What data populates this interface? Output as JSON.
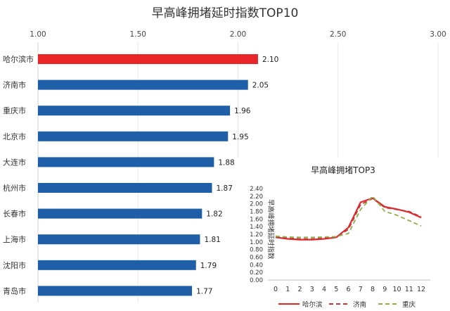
{
  "chart_data": [
    {
      "type": "bar",
      "orientation": "horizontal",
      "title": "早高峰拥堵延时指数TOP10",
      "xlim": [
        1.0,
        3.0
      ],
      "xticks": [
        "1.00",
        "1.50",
        "2.00",
        "2.50",
        "3.00"
      ],
      "xtick_values": [
        1.0,
        1.5,
        2.0,
        2.5,
        3.0
      ],
      "categories": [
        "哈尔滨市",
        "济南市",
        "重庆市",
        "北京市",
        "大连市",
        "杭州市",
        "长春市",
        "上海市",
        "沈阳市",
        "青岛市"
      ],
      "values": [
        2.1,
        2.05,
        1.96,
        1.95,
        1.88,
        1.87,
        1.82,
        1.81,
        1.79,
        1.77
      ],
      "value_labels": [
        "2.10",
        "2.05",
        "1.96",
        "1.95",
        "1.88",
        "1.87",
        "1.82",
        "1.81",
        "1.79",
        "1.77"
      ],
      "highlight_index": 0,
      "bar_color": "#1f5fa8",
      "highlight_color": "#e8262a"
    },
    {
      "type": "line",
      "title": "早高峰拥堵TOP3",
      "ylabel": "早高峰拥堵延时指数",
      "x": [
        0,
        1,
        2,
        3,
        4,
        5,
        6,
        7,
        8,
        9,
        10,
        11,
        12
      ],
      "xticks": [
        "0",
        "1",
        "2",
        "3",
        "4",
        "5",
        "6",
        "7",
        "8",
        "9",
        "10",
        "11",
        "12"
      ],
      "ylim": [
        0.0,
        2.4
      ],
      "yticks": [
        "0.00",
        "0.20",
        "0.40",
        "0.60",
        "0.80",
        "1.00",
        "1.20",
        "1.40",
        "1.60",
        "1.80",
        "2.00",
        "2.20",
        "2.40"
      ],
      "ytick_values": [
        0.0,
        0.2,
        0.4,
        0.6,
        0.8,
        1.0,
        1.2,
        1.4,
        1.6,
        1.8,
        2.0,
        2.2,
        2.4
      ],
      "series": [
        {
          "name": "哈尔滨",
          "color": "#e8262a",
          "dash": "solid",
          "values": [
            1.12,
            1.08,
            1.06,
            1.06,
            1.08,
            1.12,
            1.38,
            2.04,
            2.15,
            1.92,
            1.86,
            1.78,
            1.64
          ]
        },
        {
          "name": "济南",
          "color": "#c0393b",
          "dash": "dashed",
          "values": [
            1.13,
            1.1,
            1.08,
            1.08,
            1.1,
            1.13,
            1.33,
            1.98,
            2.14,
            1.9,
            1.85,
            1.8,
            1.66
          ]
        },
        {
          "name": "重庆",
          "color": "#8db04a",
          "dash": "dashed",
          "values": [
            1.15,
            1.13,
            1.12,
            1.12,
            1.13,
            1.14,
            1.22,
            1.85,
            2.2,
            1.8,
            1.7,
            1.56,
            1.42
          ]
        }
      ]
    }
  ]
}
